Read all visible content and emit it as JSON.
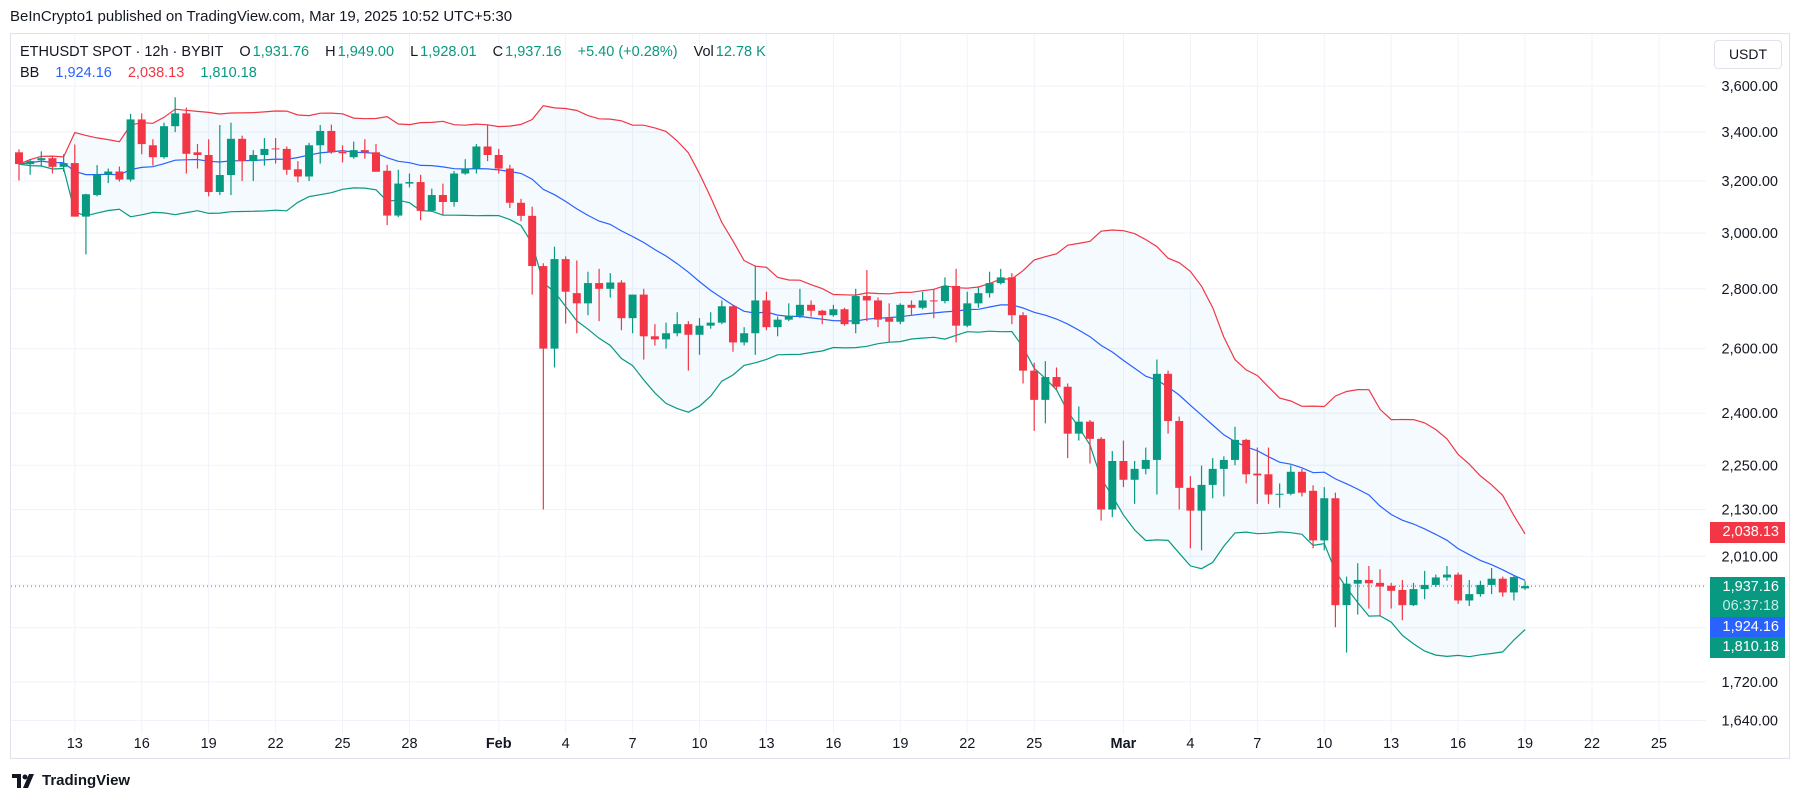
{
  "attribution": "BeInCrypto1 published on TradingView.com, Mar 19, 2025 10:52 UTC+5:30",
  "legend": {
    "symbol": "ETHUSDT SPOT · 12h · BYBIT",
    "open_label": "O",
    "open": "1,931.76",
    "high_label": "H",
    "high": "1,949.00",
    "low_label": "L",
    "low": "1,928.01",
    "close_label": "C",
    "close": "1,937.16",
    "change": "+5.40 (+0.28%)",
    "vol_label": "Vol",
    "vol": "12.78 K"
  },
  "bb": {
    "label": "BB",
    "basis": "1,924.16",
    "upper": "2,038.13",
    "lower": "1,810.18"
  },
  "price_axis": {
    "currency": "USDT"
  },
  "tags": {
    "upper": "2,038.13",
    "close": "1,937.16",
    "countdown": "06:37:18",
    "basis": "1,924.16",
    "lower": "1,810.18"
  },
  "brand": {
    "name": "TradingView",
    "logo_icon": "tradingview-logo-icon"
  },
  "colors": {
    "up": "#089981",
    "down": "#f23645",
    "basis": "#2962ff",
    "upper_band": "#f23645",
    "lower_band": "#089981",
    "band_fill": "#2196f3",
    "grid": "#f0f3fa"
  },
  "chart_data": {
    "type": "candlestick",
    "symbol": "ETHUSDT",
    "interval": "12h",
    "y_scale": "log",
    "grid": true,
    "indicator": "BB",
    "y_ticks": [
      {
        "value": 3600,
        "label": "3,600.00"
      },
      {
        "value": 3400,
        "label": "3,400.00"
      },
      {
        "value": 3200,
        "label": "3,200.00"
      },
      {
        "value": 3000,
        "label": "3,000.00"
      },
      {
        "value": 2800,
        "label": "2,800.00"
      },
      {
        "value": 2600,
        "label": "2,600.00"
      },
      {
        "value": 2400,
        "label": "2,400.00"
      },
      {
        "value": 2250,
        "label": "2,250.00"
      },
      {
        "value": 2130,
        "label": "2,130.00"
      },
      {
        "value": 2010,
        "label": "2,010.00"
      },
      {
        "value": 1720,
        "label": "1,720.00"
      },
      {
        "value": 1640,
        "label": "1,640.00"
      }
    ],
    "y_gridlines_unlabeled": [
      1940,
      1840
    ],
    "x_ticks": [
      {
        "label": "13",
        "date": "2025-01-13"
      },
      {
        "label": "16",
        "date": "2025-01-16"
      },
      {
        "label": "19",
        "date": "2025-01-19"
      },
      {
        "label": "22",
        "date": "2025-01-22"
      },
      {
        "label": "25",
        "date": "2025-01-25"
      },
      {
        "label": "28",
        "date": "2025-01-28"
      },
      {
        "label": "Feb",
        "date": "2025-02-01",
        "major": true
      },
      {
        "label": "4",
        "date": "2025-02-04"
      },
      {
        "label": "7",
        "date": "2025-02-07"
      },
      {
        "label": "10",
        "date": "2025-02-10"
      },
      {
        "label": "13",
        "date": "2025-02-13"
      },
      {
        "label": "16",
        "date": "2025-02-16"
      },
      {
        "label": "19",
        "date": "2025-02-19"
      },
      {
        "label": "22",
        "date": "2025-02-22"
      },
      {
        "label": "25",
        "date": "2025-02-25"
      },
      {
        "label": "Mar",
        "date": "2025-03-01",
        "major": true
      },
      {
        "label": "4",
        "date": "2025-03-04"
      },
      {
        "label": "7",
        "date": "2025-03-07"
      },
      {
        "label": "10",
        "date": "2025-03-10"
      },
      {
        "label": "13",
        "date": "2025-03-13"
      },
      {
        "label": "16",
        "date": "2025-03-16"
      },
      {
        "label": "19",
        "date": "2025-03-19"
      },
      {
        "label": "22",
        "date": "2025-03-22"
      },
      {
        "label": "25",
        "date": "2025-03-25"
      }
    ],
    "candles_ohlc": [
      [
        3316,
        3328,
        3202,
        3268
      ],
      [
        3268,
        3288,
        3225,
        3280
      ],
      [
        3284,
        3320,
        3260,
        3292
      ],
      [
        3292,
        3300,
        3230,
        3257
      ],
      [
        3257,
        3308,
        3237,
        3272
      ],
      [
        3272,
        3348,
        3062,
        3062
      ],
      [
        3062,
        3150,
        2922,
        3148
      ],
      [
        3145,
        3264,
        3140,
        3226
      ],
      [
        3226,
        3250,
        3192,
        3238
      ],
      [
        3238,
        3258,
        3198,
        3206
      ],
      [
        3206,
        3478,
        3198,
        3454
      ],
      [
        3454,
        3480,
        3308,
        3350
      ],
      [
        3345,
        3370,
        3262,
        3296
      ],
      [
        3296,
        3440,
        3290,
        3425
      ],
      [
        3425,
        3550,
        3400,
        3480
      ],
      [
        3480,
        3505,
        3230,
        3310
      ],
      [
        3316,
        3350,
        3250,
        3305
      ],
      [
        3305,
        3370,
        3140,
        3157
      ],
      [
        3157,
        3430,
        3145,
        3224
      ],
      [
        3224,
        3440,
        3145,
        3372
      ],
      [
        3372,
        3385,
        3200,
        3280
      ],
      [
        3280,
        3325,
        3200,
        3305
      ],
      [
        3305,
        3375,
        3262,
        3330
      ],
      [
        3332,
        3375,
        3270,
        3328
      ],
      [
        3330,
        3340,
        3225,
        3245
      ],
      [
        3247,
        3280,
        3195,
        3218
      ],
      [
        3218,
        3355,
        3200,
        3345
      ],
      [
        3345,
        3430,
        3270,
        3405
      ],
      [
        3405,
        3432,
        3310,
        3316
      ],
      [
        3318,
        3345,
        3275,
        3312
      ],
      [
        3296,
        3360,
        3290,
        3325
      ],
      [
        3325,
        3370,
        3290,
        3316
      ],
      [
        3316,
        3350,
        3237,
        3237
      ],
      [
        3241,
        3265,
        3030,
        3066
      ],
      [
        3066,
        3245,
        3060,
        3190
      ],
      [
        3190,
        3230,
        3175,
        3196
      ],
      [
        3196,
        3225,
        3048,
        3084
      ],
      [
        3084,
        3170,
        3080,
        3145
      ],
      [
        3145,
        3190,
        3070,
        3118
      ],
      [
        3118,
        3240,
        3100,
        3230
      ],
      [
        3230,
        3288,
        3225,
        3250
      ],
      [
        3250,
        3350,
        3230,
        3340
      ],
      [
        3340,
        3432,
        3280,
        3305
      ],
      [
        3305,
        3330,
        3230,
        3250
      ],
      [
        3250,
        3265,
        3095,
        3115
      ],
      [
        3115,
        3130,
        3045,
        3065
      ],
      [
        3065,
        3100,
        2780,
        2880
      ],
      [
        2880,
        2890,
        2130,
        2600
      ],
      [
        2600,
        2950,
        2540,
        2905
      ],
      [
        2905,
        2915,
        2682,
        2790
      ],
      [
        2785,
        2900,
        2650,
        2750
      ],
      [
        2750,
        2860,
        2710,
        2820
      ],
      [
        2820,
        2870,
        2690,
        2800
      ],
      [
        2800,
        2855,
        2770,
        2822
      ],
      [
        2822,
        2830,
        2660,
        2700
      ],
      [
        2700,
        2780,
        2650,
        2780
      ],
      [
        2780,
        2800,
        2565,
        2640
      ],
      [
        2640,
        2680,
        2610,
        2630
      ],
      [
        2630,
        2685,
        2600,
        2650
      ],
      [
        2650,
        2720,
        2640,
        2680
      ],
      [
        2680,
        2690,
        2530,
        2645
      ],
      [
        2645,
        2700,
        2580,
        2675
      ],
      [
        2675,
        2720,
        2665,
        2685
      ],
      [
        2685,
        2760,
        2680,
        2740
      ],
      [
        2740,
        2745,
        2590,
        2620
      ],
      [
        2620,
        2670,
        2610,
        2650
      ],
      [
        2650,
        2880,
        2580,
        2760
      ],
      [
        2760,
        2790,
        2660,
        2670
      ],
      [
        2670,
        2705,
        2640,
        2695
      ],
      [
        2695,
        2750,
        2690,
        2708
      ],
      [
        2708,
        2800,
        2700,
        2745
      ],
      [
        2745,
        2760,
        2705,
        2725
      ],
      [
        2725,
        2728,
        2680,
        2710
      ],
      [
        2710,
        2745,
        2705,
        2730
      ],
      [
        2730,
        2735,
        2675,
        2680
      ],
      [
        2680,
        2800,
        2650,
        2775
      ],
      [
        2775,
        2866,
        2690,
        2760
      ],
      [
        2760,
        2770,
        2670,
        2695
      ],
      [
        2700,
        2750,
        2620,
        2688
      ],
      [
        2688,
        2750,
        2680,
        2745
      ],
      [
        2745,
        2760,
        2710,
        2735
      ],
      [
        2735,
        2790,
        2730,
        2760
      ],
      [
        2760,
        2800,
        2700,
        2758
      ],
      [
        2758,
        2840,
        2750,
        2810
      ],
      [
        2810,
        2870,
        2620,
        2675
      ],
      [
        2675,
        2790,
        2670,
        2750
      ],
      [
        2750,
        2805,
        2735,
        2785
      ],
      [
        2785,
        2860,
        2770,
        2820
      ],
      [
        2820,
        2870,
        2815,
        2840
      ],
      [
        2840,
        2855,
        2680,
        2710
      ],
      [
        2710,
        2720,
        2490,
        2530
      ],
      [
        2530,
        2555,
        2348,
        2440
      ],
      [
        2440,
        2560,
        2370,
        2510
      ],
      [
        2510,
        2540,
        2470,
        2480
      ],
      [
        2480,
        2490,
        2270,
        2340
      ],
      [
        2340,
        2420,
        2320,
        2375
      ],
      [
        2375,
        2380,
        2255,
        2325
      ],
      [
        2325,
        2330,
        2101,
        2130
      ],
      [
        2130,
        2290,
        2110,
        2262
      ],
      [
        2262,
        2320,
        2190,
        2210
      ],
      [
        2210,
        2262,
        2145,
        2240
      ],
      [
        2240,
        2300,
        2225,
        2265
      ],
      [
        2265,
        2565,
        2170,
        2520
      ],
      [
        2520,
        2530,
        2340,
        2377
      ],
      [
        2377,
        2390,
        2130,
        2188
      ],
      [
        2188,
        2220,
        2030,
        2127
      ],
      [
        2127,
        2249,
        2025,
        2196
      ],
      [
        2196,
        2270,
        2160,
        2240
      ],
      [
        2240,
        2275,
        2165,
        2265
      ],
      [
        2265,
        2360,
        2250,
        2322
      ],
      [
        2322,
        2325,
        2200,
        2225
      ],
      [
        2227,
        2300,
        2145,
        2222
      ],
      [
        2225,
        2300,
        2145,
        2170
      ],
      [
        2170,
        2200,
        2135,
        2172
      ],
      [
        2172,
        2250,
        2168,
        2232
      ],
      [
        2232,
        2240,
        2165,
        2175
      ],
      [
        2180,
        2195,
        2030,
        2050
      ],
      [
        2050,
        2190,
        2025,
        2160
      ],
      [
        2160,
        2175,
        1841,
        1892
      ],
      [
        1892,
        1960,
        1784,
        1943
      ],
      [
        1943,
        1993,
        1870,
        1952
      ],
      [
        1952,
        1986,
        1884,
        1944
      ],
      [
        1945,
        1978,
        1866,
        1936
      ],
      [
        1938,
        1945,
        1884,
        1926
      ],
      [
        1928,
        1952,
        1857,
        1892
      ],
      [
        1892,
        1945,
        1890,
        1930
      ],
      [
        1930,
        1974,
        1906,
        1940
      ],
      [
        1940,
        1965,
        1935,
        1958
      ],
      [
        1958,
        1986,
        1950,
        1965
      ],
      [
        1965,
        1970,
        1895,
        1903
      ],
      [
        1903,
        1952,
        1890,
        1918
      ],
      [
        1918,
        1950,
        1912,
        1940
      ],
      [
        1940,
        1981,
        1918,
        1955
      ],
      [
        1955,
        1960,
        1912,
        1922
      ],
      [
        1922,
        1962,
        1903,
        1959
      ],
      [
        1931.76,
        1949.0,
        1928.01,
        1937.16
      ]
    ],
    "last_close": 1937.16
  }
}
